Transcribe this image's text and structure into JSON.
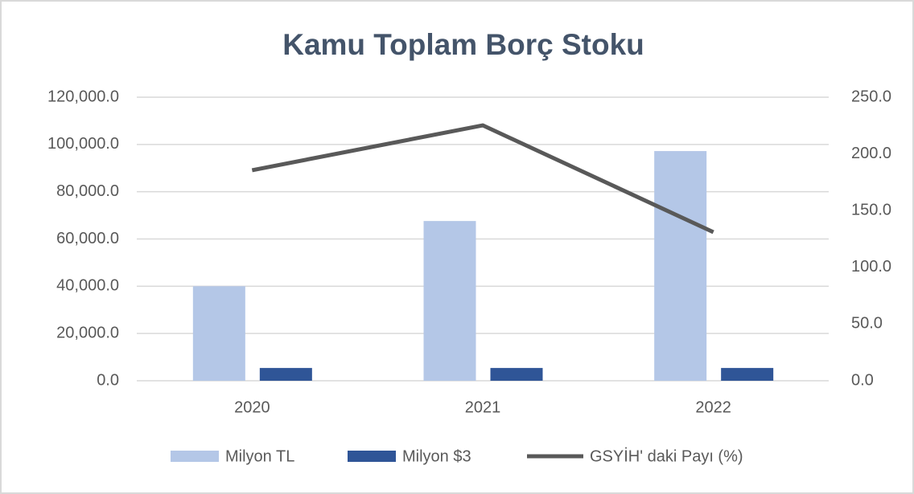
{
  "chart_data": {
    "type": "bar",
    "title": "Kamu Toplam Borç Stoku",
    "categories": [
      "2020",
      "2021",
      "2022"
    ],
    "series": [
      {
        "name": "Milyon TL",
        "type": "bar",
        "color": "#b4c7e7",
        "values": [
          40000,
          67600,
          97200
        ]
      },
      {
        "name": "Milyon $3",
        "type": "bar",
        "color": "#2f5597",
        "values": [
          5400,
          5400,
          5400
        ]
      },
      {
        "name": "GSYİH' daki Payı (%)",
        "type": "line",
        "axis": "y2",
        "color": "#595959",
        "values": [
          185.6,
          225.2,
          131
        ]
      }
    ],
    "ylim": [
      0,
      120000
    ],
    "yticks": [
      {
        "value": 0,
        "label": "0.0"
      },
      {
        "value": 20000,
        "label": "20,000.0"
      },
      {
        "value": 40000,
        "label": "40,000.0"
      },
      {
        "value": 60000,
        "label": "60,000.0"
      },
      {
        "value": 80000,
        "label": "80,000.0"
      },
      {
        "value": 100000,
        "label": "100,000.0"
      },
      {
        "value": 120000,
        "label": "120,000.0"
      }
    ],
    "y2lim": [
      0,
      250
    ],
    "y2ticks": [
      {
        "value": 0,
        "label": "0.0"
      },
      {
        "value": 50,
        "label": "50.0"
      },
      {
        "value": 100,
        "label": "100.0"
      },
      {
        "value": 150,
        "label": "150.0"
      },
      {
        "value": 200,
        "label": "200.0"
      },
      {
        "value": 250,
        "label": "250.0"
      }
    ],
    "grid": true,
    "legend": "bottom"
  }
}
